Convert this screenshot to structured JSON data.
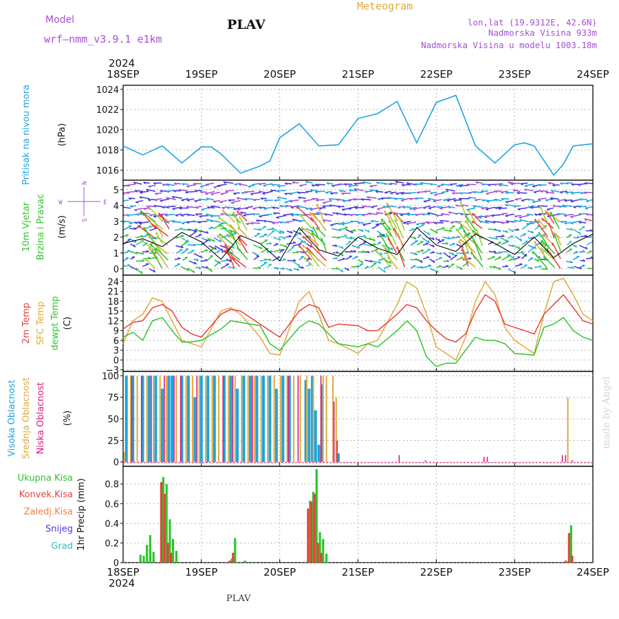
{
  "header": {
    "model_label": "Model",
    "model_name": "wrf–nmm_v3.9.1  e1km",
    "station": "PLAV",
    "product": "Meteogram",
    "lonlat": "lon,lat (19.9312E, 42.6N)",
    "elevation": "Nadmorska Visina 933m",
    "model_elevation": "Nadmorska Visina u modelu 1003.18m",
    "footer_station": "PLAV",
    "credit": "made by Angel"
  },
  "time_axis": {
    "year": "2024",
    "labels": [
      "18SEP",
      "19SEP",
      "20SEP",
      "21SEP",
      "22SEP",
      "23SEP",
      "24SEP"
    ]
  },
  "colors": {
    "pressure": "#1fa3e0",
    "temp": "#e8413c",
    "sfc_temp": "#e0a93a",
    "dewpoint": "#2ec42e",
    "high_cloud": "#1fa3e0",
    "mid_cloud": "#e0a93a",
    "low_cloud": "#d8187a",
    "total_precip": "#2ec42e",
    "conv_precip": "#e8413c",
    "snow": "#4a3adb",
    "purple": "#a64fd6",
    "wind_speed_line": "#000000"
  },
  "chart_data": [
    {
      "type": "line",
      "panel": "pressure",
      "ylabel_title": "Pritisak na nivou mora",
      "ylabel_unit": "(hPa)",
      "ylim": [
        1015,
        1024.4
      ],
      "yticks": [
        "1016",
        "1018",
        "1020",
        "1022",
        "1024"
      ],
      "x_unit": "hours from 18SEP 00UTC",
      "series": [
        {
          "x": [
            0,
            6,
            12,
            18,
            24,
            27,
            30,
            36,
            42,
            45,
            48,
            54,
            60,
            66,
            72,
            78,
            84,
            90,
            96,
            102,
            108,
            114,
            120,
            123,
            126,
            132,
            135,
            138,
            144
          ],
          "values": [
            1018.4,
            1017.5,
            1018.4,
            1016.7,
            1018.3,
            1018.3,
            1017.6,
            1015.7,
            1016.4,
            1016.9,
            1019.2,
            1020.6,
            1018.4,
            1018.5,
            1021.1,
            1021.6,
            1022.8,
            1018.7,
            1022.7,
            1023.4,
            1018.4,
            1016.7,
            1018.5,
            1018.7,
            1018.4,
            1015.5,
            1016.6,
            1018.4,
            1018.6
          ]
        }
      ]
    },
    {
      "type": "line",
      "panel": "wind",
      "ylabel_title": "10m Vjetar",
      "ylabel_title2": "Brzina i Pravac",
      "ylabel_unit": "(m/s)",
      "compass": [
        "N",
        "S",
        "W",
        "E"
      ],
      "ylim": [
        -0.4,
        5.6
      ],
      "yticks": [
        "0",
        "1",
        "2",
        "3",
        "4",
        "5"
      ],
      "series": [
        {
          "name": "speed",
          "x": [
            0,
            6,
            12,
            18,
            24,
            30,
            36,
            42,
            48,
            54,
            60,
            66,
            72,
            78,
            84,
            90,
            96,
            102,
            108,
            114,
            120,
            126,
            132,
            138,
            144
          ],
          "values": [
            1.6,
            1.9,
            1.4,
            2.3,
            1.7,
            0.6,
            2.1,
            1.6,
            0.5,
            2.6,
            1.2,
            0.8,
            2.0,
            1.3,
            0.9,
            2.6,
            1.5,
            1.1,
            2.2,
            1.6,
            0.9,
            2.0,
            0.7,
            1.6,
            2.2
          ]
        }
      ]
    },
    {
      "type": "line",
      "panel": "temperature",
      "ylabel_titles": [
        "2m Temp",
        "SFC Temp",
        "dewpt Temp"
      ],
      "ylabel_unit": "(C)",
      "ylim": [
        -3.5,
        26
      ],
      "yticks": [
        "−3",
        "0",
        "3",
        "6",
        "9",
        "12",
        "15",
        "18",
        "21",
        "24"
      ],
      "series": [
        {
          "name": "2m Temp",
          "x": [
            0,
            3,
            6,
            9,
            12,
            15,
            18,
            21,
            24,
            30,
            33,
            36,
            42,
            45,
            48,
            54,
            57,
            60,
            63,
            66,
            72,
            75,
            78,
            84,
            87,
            90,
            93,
            96,
            99,
            102,
            105,
            108,
            111,
            114,
            117,
            120,
            126,
            129,
            132,
            135,
            138,
            141,
            144
          ],
          "values": [
            9.5,
            11.5,
            12,
            16,
            17,
            15,
            10,
            8,
            7,
            14,
            15.5,
            15,
            11,
            9,
            7,
            15,
            17,
            16,
            10,
            11,
            10.5,
            9,
            9,
            14,
            17,
            16,
            12,
            9,
            6.5,
            5.5,
            8,
            15,
            20,
            18,
            11,
            10,
            8,
            14,
            17,
            20,
            16,
            12,
            11
          ]
        },
        {
          "name": "SFC Temp",
          "x": [
            0,
            3,
            6,
            9,
            12,
            15,
            18,
            21,
            24,
            30,
            33,
            36,
            42,
            45,
            48,
            54,
            57,
            60,
            63,
            66,
            72,
            75,
            78,
            84,
            87,
            90,
            93,
            96,
            99,
            102,
            105,
            108,
            111,
            114,
            117,
            120,
            126,
            129,
            132,
            135,
            138,
            141,
            144
          ],
          "values": [
            5,
            12,
            14,
            19,
            18,
            12,
            6,
            5,
            4,
            15,
            16,
            14,
            7,
            2,
            1.5,
            18,
            21,
            14,
            6,
            5,
            2,
            5,
            6,
            17,
            24,
            22,
            14,
            4,
            2,
            0,
            7,
            18,
            24,
            20,
            10,
            6,
            2,
            14,
            24,
            25,
            20,
            14,
            12
          ]
        },
        {
          "name": "dewpt Temp",
          "x": [
            0,
            3,
            6,
            9,
            12,
            15,
            18,
            21,
            24,
            30,
            33,
            36,
            42,
            45,
            48,
            54,
            57,
            60,
            63,
            66,
            72,
            75,
            78,
            84,
            87,
            90,
            93,
            96,
            99,
            102,
            105,
            108,
            111,
            114,
            117,
            120,
            126,
            129,
            132,
            135,
            138,
            141,
            144
          ],
          "values": [
            7,
            8.5,
            6,
            12,
            13,
            9,
            5.5,
            5.5,
            6,
            9.5,
            12,
            11.5,
            10.5,
            5,
            3,
            10,
            12,
            11,
            8,
            5,
            4,
            5,
            4,
            9,
            12,
            9,
            1,
            -2,
            -1,
            -1,
            3,
            7,
            6,
            6,
            5,
            2,
            1.5,
            10,
            11,
            13,
            9,
            7,
            6
          ]
        }
      ]
    },
    {
      "type": "bar",
      "panel": "clouds",
      "ylabel_titles": [
        "Visoka Oblacnost",
        "Srednja Oblacnost",
        "Niska Oblacnost"
      ],
      "ylabel_unit": "(%)",
      "ylim": [
        -5,
        105
      ],
      "yticks": [
        "0",
        "25",
        "50",
        "75",
        "100"
      ],
      "series": [
        {
          "name": "Visoka Oblacnost",
          "x": [
            1,
            3,
            6,
            8,
            10,
            12,
            14,
            15,
            18,
            20,
            22,
            24,
            26,
            28,
            31,
            33,
            35,
            37,
            39,
            41,
            43,
            45,
            47,
            49,
            51,
            56,
            57,
            58,
            59,
            60,
            61,
            66
          ],
          "values": [
            100,
            100,
            100,
            100,
            100,
            85,
            100,
            100,
            100,
            100,
            75,
            100,
            100,
            100,
            100,
            100,
            85,
            100,
            100,
            100,
            100,
            100,
            85,
            100,
            100,
            95,
            85,
            100,
            60,
            20,
            90,
            10
          ]
        },
        {
          "name": "Srednja Oblacnost",
          "x": [
            0,
            2,
            4,
            7,
            9,
            11,
            13,
            16,
            19,
            21,
            23,
            25,
            27,
            29,
            32,
            34,
            36,
            38,
            40,
            42,
            44,
            46,
            48,
            50,
            52,
            54,
            56,
            58,
            61,
            62,
            64,
            65,
            136
          ],
          "values": [
            12,
            100,
            100,
            100,
            100,
            100,
            100,
            100,
            100,
            100,
            100,
            100,
            100,
            100,
            100,
            100,
            100,
            100,
            100,
            100,
            100,
            100,
            100,
            100,
            100,
            100,
            100,
            100,
            100,
            100,
            100,
            75,
            75
          ]
        },
        {
          "name": "Niska Oblacnost",
          "x": [
            2,
            5,
            8,
            12,
            15,
            17,
            22,
            30,
            33,
            39,
            50,
            53,
            60,
            64,
            65,
            84,
            92,
            110,
            111,
            134,
            135,
            137
          ],
          "values": [
            100,
            100,
            100,
            100,
            100,
            100,
            100,
            100,
            100,
            100,
            100,
            100,
            100,
            70,
            25,
            8,
            2,
            6,
            6,
            8,
            8,
            2
          ]
        }
      ]
    },
    {
      "type": "bar",
      "panel": "precip",
      "ylabel_titles": [
        "Ukupna Kisa",
        "Konvek.Kisa",
        "Zaledj.Kisa",
        "Snijeg",
        "Grad"
      ],
      "ylabel_unit": "1hr Precip (mm)",
      "ylim": [
        0,
        0.98
      ],
      "yticks": [
        "0",
        "0.2",
        "0.4",
        "0.6",
        "0.8"
      ],
      "series": [
        {
          "name": "Ukupna Kisa",
          "x": [
            5,
            6,
            7,
            8,
            9,
            12,
            13,
            14,
            15,
            16,
            33,
            34,
            37,
            57,
            58,
            59,
            60,
            61,
            62,
            137
          ],
          "values": [
            0.08,
            0.07,
            0.18,
            0.28,
            0.11,
            0.87,
            0.8,
            0.44,
            0.24,
            0.12,
            0.04,
            0.25,
            0.02,
            0.63,
            0.72,
            0.95,
            0.31,
            0.24,
            0.09,
            0.38
          ]
        },
        {
          "name": "Konvek.Kisa",
          "x": [
            12,
            13,
            14,
            15,
            33,
            34,
            57,
            58,
            59,
            60,
            61,
            136,
            137,
            138
          ],
          "values": [
            0.82,
            0.7,
            0.2,
            0.1,
            0.02,
            0.1,
            0.55,
            0.62,
            0.7,
            0.2,
            0.1,
            0.02,
            0.3,
            0.07
          ]
        }
      ]
    }
  ]
}
